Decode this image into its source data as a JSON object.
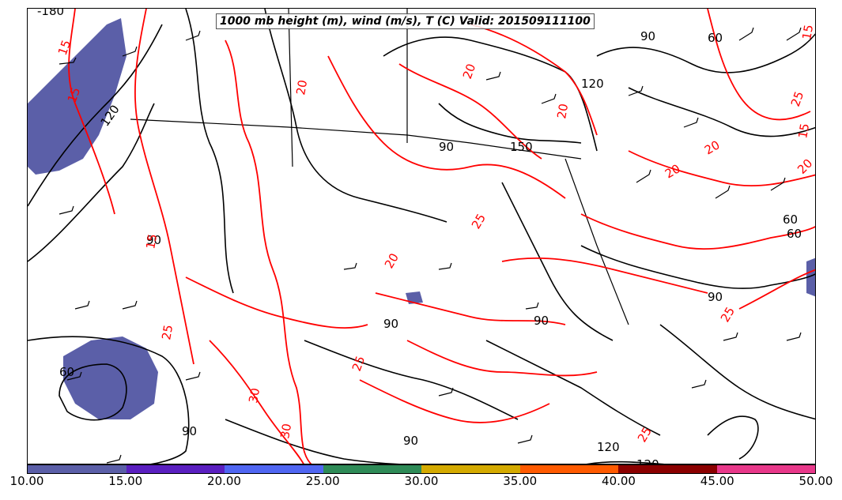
{
  "title": "1000 mb height (m), wind (m/s), T (C) Valid: 201509111100",
  "colorbar": {
    "colors": [
      "#5b5fa8",
      "#5a1fc0",
      "#5066f2",
      "#2e8b57",
      "#d4aa00",
      "#ff5a00",
      "#8b0000",
      "#e8388a"
    ],
    "ticks": [
      "10.00",
      "15.00",
      "20.00",
      "25.00",
      "30.00",
      "35.00",
      "40.00",
      "45.00",
      "50.00"
    ]
  },
  "contour_labels": {
    "height": [
      "-180",
      "90",
      "60",
      "120",
      "60",
      "90",
      "120",
      "90",
      "60",
      "90",
      "120",
      "150",
      "90",
      "60",
      "90",
      "90",
      "90",
      "120"
    ],
    "temperature": [
      "15",
      "20",
      "25",
      "25",
      "20",
      "15",
      "15",
      "20",
      "20",
      "20",
      "25",
      "30",
      "30",
      "25",
      "20",
      "15",
      "25",
      "20",
      "15",
      "25"
    ]
  },
  "colors": {
    "temperature_contour": "#ff0000",
    "height_contour": "#000000",
    "wind_barb": "#000000",
    "shading_low": "#5b5fa8"
  },
  "icons": [
    "wind-barb-icon"
  ]
}
